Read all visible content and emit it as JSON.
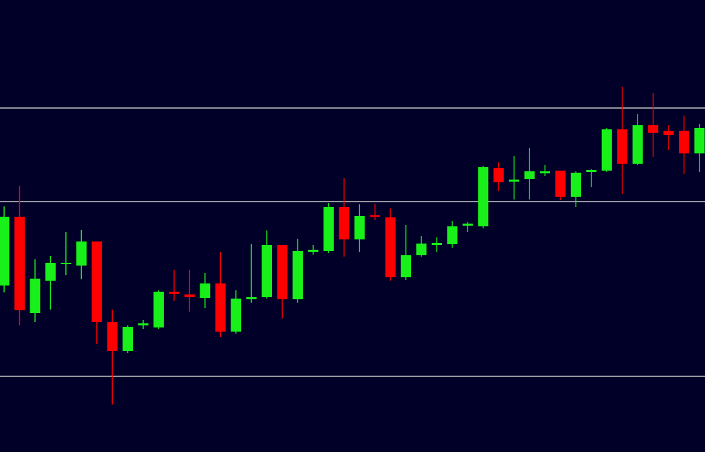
{
  "chart_data": {
    "type": "candlestick",
    "open": [
      242,
      342,
      202,
      249,
      273,
      271,
      306,
      189,
      147,
      184,
      181,
      233,
      229,
      224,
      245,
      175,
      222,
      225,
      301,
      222,
      291,
      292,
      356,
      309,
      344,
      341,
      254,
      286,
      301,
      302,
      329,
      328,
      413,
      393,
      397,
      405,
      409,
      371,
      407,
      409,
      469,
      419,
      475,
      467,
      467,
      434
    ],
    "high": [
      357,
      387,
      280,
      285,
      320,
      323,
      306,
      207,
      184,
      192,
      235,
      265,
      265,
      260,
      291,
      235,
      302,
      322,
      301,
      310,
      301,
      362,
      398,
      360,
      361,
      354,
      330,
      314,
      312,
      336,
      334,
      416,
      421,
      430,
      442,
      417,
      409,
      408,
      411,
      471,
      531,
      491,
      522,
      475,
      489,
      477
    ],
    "low": [
      232,
      184,
      189,
      207,
      257,
      251,
      157,
      69,
      144,
      179,
      179,
      220,
      204,
      209,
      167,
      172,
      217,
      223,
      194,
      217,
      287,
      289,
      284,
      291,
      337,
      249,
      250,
      284,
      291,
      297,
      320,
      325,
      379,
      367,
      367,
      401,
      366,
      356,
      385,
      407,
      375,
      417,
      429,
      439,
      404,
      407
    ],
    "close": [
      342,
      206,
      252,
      275,
      275,
      306,
      189,
      147,
      182,
      187,
      233,
      230,
      225,
      245,
      175,
      223,
      225,
      301,
      222,
      292,
      294,
      356,
      309,
      343,
      342,
      254,
      286,
      303,
      304,
      328,
      332,
      414,
      392,
      396,
      408,
      408,
      371,
      406,
      410,
      469,
      419,
      475,
      464,
      461,
      434,
      471
    ],
    "up_color": "#19f019",
    "down_color": "#ff0000",
    "background": "#000028",
    "level_color": "#c8c8c8",
    "levels": [
      500,
      364,
      110
    ],
    "ylim": [
      0,
      657
    ]
  }
}
